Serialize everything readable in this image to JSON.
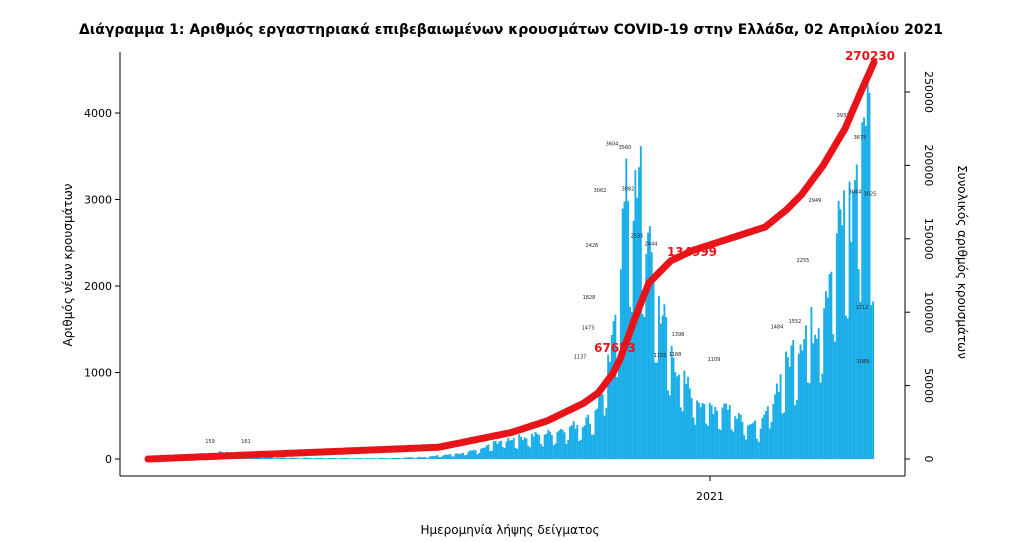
{
  "chart_data": {
    "type": "bar",
    "title": "Διάγραμμα 1: Αριθμός εργαστηριακά επιβεβαιωμένων κρουσμάτων COVID-19 στην Ελλάδα, 02 Απριλίου 2021",
    "xlabel": "Ημερομηνία λήψης δείγματος",
    "ylabel": "Αριθμός νέων κρουσμάτων",
    "y2label": "Συνολικός αριθμός κρουσμάτων",
    "x_tick_label": "2021",
    "ylim": [
      0,
      4700
    ],
    "y_ticks": [
      0,
      1000,
      2000,
      3000,
      4000
    ],
    "y2lim": [
      0,
      280000
    ],
    "y2_ticks": [
      0,
      50000,
      100000,
      150000,
      200000,
      250000
    ],
    "colors": {
      "bars": "#19aee8",
      "cumulative": "#e8141a",
      "annotation": "#e8141a"
    },
    "annotations": [
      {
        "label": "67653",
        "value": 67653
      },
      {
        "label": "134999",
        "value": 134999
      },
      {
        "label": "270230",
        "value": 270230
      }
    ],
    "bar_label_samples": [
      {
        "label": "3604",
        "value": 3604
      },
      {
        "label": "3560",
        "value": 3560
      },
      {
        "label": "3062",
        "value": 3062
      },
      {
        "label": "3082",
        "value": 3082
      },
      {
        "label": "2535",
        "value": 2535
      },
      {
        "label": "2444",
        "value": 2444
      },
      {
        "label": "2426",
        "value": 2426
      },
      {
        "label": "1828",
        "value": 1828
      },
      {
        "label": "1473",
        "value": 1473
      },
      {
        "label": "1137",
        "value": 1137
      },
      {
        "label": "1155",
        "value": 1155
      },
      {
        "label": "1168",
        "value": 1168
      },
      {
        "label": "1109",
        "value": 1109
      },
      {
        "label": "1398",
        "value": 1398
      },
      {
        "label": "1484",
        "value": 1484
      },
      {
        "label": "1552",
        "value": 1552
      },
      {
        "label": "2255",
        "value": 2255
      },
      {
        "label": "2949",
        "value": 2949
      },
      {
        "label": "3932",
        "value": 3932
      },
      {
        "label": "3675",
        "value": 3675
      },
      {
        "label": "3044",
        "value": 3044
      },
      {
        "label": "3025",
        "value": 3025
      },
      {
        "label": "1712",
        "value": 1712
      },
      {
        "label": "1089",
        "value": 1089
      },
      {
        "label": "159",
        "value": 159
      },
      {
        "label": "161",
        "value": 161
      }
    ],
    "legend": "none",
    "grid": false
  }
}
